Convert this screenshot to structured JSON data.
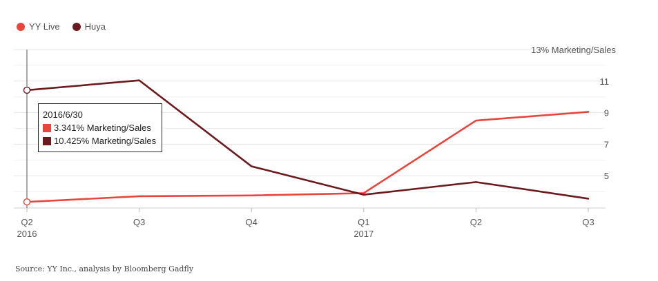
{
  "legend": {
    "items": [
      {
        "label": "YY Live",
        "color": "#e8453c"
      },
      {
        "label": "Huya",
        "color": "#6b1a1f"
      }
    ]
  },
  "tooltip": {
    "date": "2016/6/30",
    "rows": [
      {
        "text": "3.341% Marketing/Sales",
        "color": "#e8453c"
      },
      {
        "text": "10.425% Marketing/Sales",
        "color": "#6b1a1f"
      }
    ]
  },
  "source": "Source: YY Inc., analysis by Bloomberg Gadfly",
  "chart_data": {
    "type": "line",
    "title": "",
    "ylabel": "13% Marketing/Sales",
    "xlabel": "",
    "categories": [
      "Q2",
      "Q3",
      "Q4",
      "Q1",
      "Q2",
      "Q3"
    ],
    "category_sublabels": [
      "2016",
      "",
      "",
      "2017",
      "",
      ""
    ],
    "ylim": [
      3,
      13
    ],
    "yticks": [
      5,
      7,
      9,
      11
    ],
    "top_tick_label": "13% Marketing/Sales",
    "series": [
      {
        "name": "YY Live",
        "color": "#e8453c",
        "values": [
          3.341,
          3.7,
          3.75,
          3.9,
          8.5,
          9.05
        ]
      },
      {
        "name": "Huya",
        "color": "#6b1a1f",
        "values": [
          10.425,
          11.05,
          5.6,
          3.8,
          4.6,
          3.55
        ]
      }
    ],
    "hover_index": 0
  }
}
